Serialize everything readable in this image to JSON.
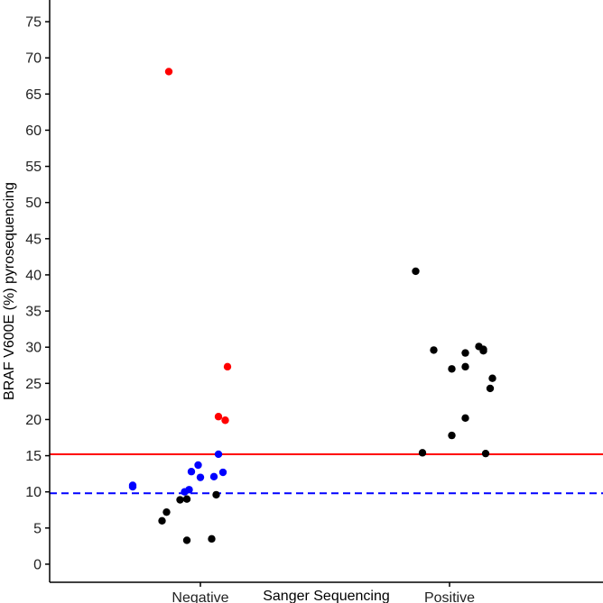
{
  "chart_data": {
    "type": "scatter",
    "title": "",
    "xlabel": "Sanger Sequencing",
    "ylabel": "BRAF V600E (%) pyrosequencing",
    "categories": [
      "Negative",
      "Positive"
    ],
    "ylim": [
      -2.5,
      78
    ],
    "yticks": [
      0,
      5,
      10,
      15,
      20,
      25,
      30,
      35,
      40,
      45,
      50,
      55,
      60,
      65,
      70,
      75
    ],
    "grid": false,
    "legend": "none",
    "colors": {
      "red": "#ff0000",
      "blue": "#0000ff",
      "black": "#000000"
    },
    "reference_lines": [
      {
        "y": 15.2,
        "color": "#ff0000",
        "style": "solid"
      },
      {
        "y": 9.8,
        "color": "#0000ff",
        "style": "dashed"
      }
    ],
    "series": [
      {
        "color": "#ff0000",
        "points": [
          {
            "category": "Negative",
            "jitter": -0.14,
            "y": 68.1
          },
          {
            "category": "Negative",
            "jitter": 0.12,
            "y": 27.3
          },
          {
            "category": "Negative",
            "jitter": 0.11,
            "y": 19.9
          },
          {
            "category": "Negative",
            "jitter": 0.08,
            "y": 20.4
          }
        ]
      },
      {
        "color": "#0000ff",
        "points": [
          {
            "category": "Negative",
            "jitter": -0.3,
            "y": 10.9
          },
          {
            "category": "Negative",
            "jitter": -0.3,
            "y": 10.7
          },
          {
            "category": "Negative",
            "jitter": -0.04,
            "y": 12.8
          },
          {
            "category": "Negative",
            "jitter": -0.01,
            "y": 13.7
          },
          {
            "category": "Negative",
            "jitter": 0.0,
            "y": 12.0
          },
          {
            "category": "Negative",
            "jitter": -0.07,
            "y": 10.0
          },
          {
            "category": "Negative",
            "jitter": -0.05,
            "y": 10.3
          },
          {
            "category": "Negative",
            "jitter": 0.06,
            "y": 12.1
          },
          {
            "category": "Negative",
            "jitter": 0.1,
            "y": 12.7
          },
          {
            "category": "Negative",
            "jitter": 0.08,
            "y": 15.2
          }
        ]
      },
      {
        "color": "#000000",
        "points": [
          {
            "category": "Negative",
            "jitter": -0.15,
            "y": 7.2
          },
          {
            "category": "Negative",
            "jitter": -0.17,
            "y": 6.0
          },
          {
            "category": "Negative",
            "jitter": -0.09,
            "y": 8.9
          },
          {
            "category": "Negative",
            "jitter": -0.06,
            "y": 9.0
          },
          {
            "category": "Negative",
            "jitter": -0.06,
            "y": 3.3
          },
          {
            "category": "Negative",
            "jitter": 0.05,
            "y": 3.5
          },
          {
            "category": "Negative",
            "jitter": 0.07,
            "y": 9.6
          },
          {
            "category": "Positive",
            "jitter": -0.15,
            "y": 40.5
          },
          {
            "category": "Positive",
            "jitter": -0.12,
            "y": 15.4
          },
          {
            "category": "Positive",
            "jitter": -0.07,
            "y": 29.6
          },
          {
            "category": "Positive",
            "jitter": 0.01,
            "y": 27.0
          },
          {
            "category": "Positive",
            "jitter": 0.01,
            "y": 17.8
          },
          {
            "category": "Positive",
            "jitter": 0.07,
            "y": 29.2
          },
          {
            "category": "Positive",
            "jitter": 0.07,
            "y": 27.3
          },
          {
            "category": "Positive",
            "jitter": 0.07,
            "y": 20.2
          },
          {
            "category": "Positive",
            "jitter": 0.13,
            "y": 30.1
          },
          {
            "category": "Positive",
            "jitter": 0.15,
            "y": 29.7
          },
          {
            "category": "Positive",
            "jitter": 0.15,
            "y": 29.5
          },
          {
            "category": "Positive",
            "jitter": 0.16,
            "y": 15.3
          },
          {
            "category": "Positive",
            "jitter": 0.18,
            "y": 24.3
          },
          {
            "category": "Positive",
            "jitter": 0.19,
            "y": 25.7
          }
        ]
      }
    ]
  }
}
